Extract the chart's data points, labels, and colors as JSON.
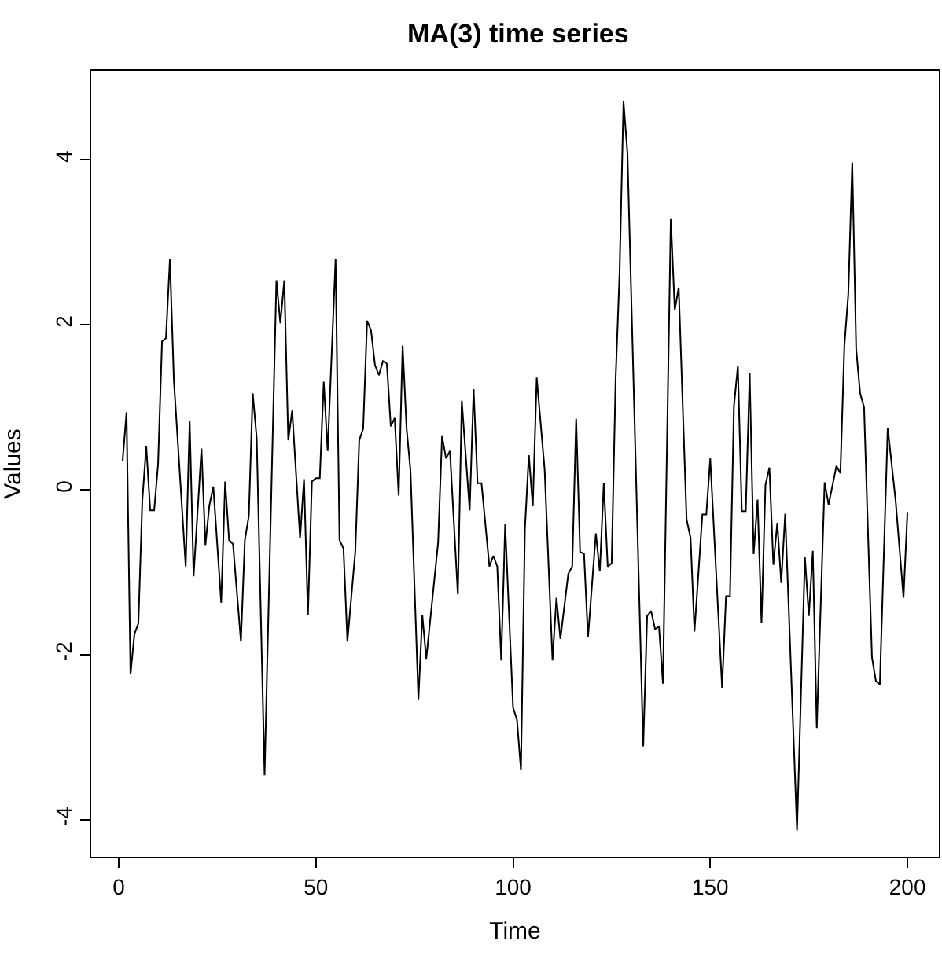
{
  "chart_data": {
    "type": "line",
    "title": "MA(3) time series",
    "xlabel": "Time",
    "ylabel": "Values",
    "xlim": [
      -6.96,
      207.96
    ],
    "ylim": [
      -4.45,
      5.08
    ],
    "xticks": [
      0,
      50,
      100,
      150,
      200
    ],
    "yticks": [
      -4,
      -2,
      0,
      2,
      4
    ],
    "marker": "none",
    "line_style": "solid",
    "series": [
      {
        "color": "#000000",
        "x": [
          1,
          2,
          3,
          4,
          5,
          6,
          7,
          8,
          9,
          10,
          11,
          12,
          13,
          14,
          17,
          18,
          19,
          21,
          22,
          23,
          24,
          26,
          27,
          28,
          29,
          31,
          32,
          33,
          34,
          35,
          37,
          40,
          41,
          42,
          43,
          44,
          46,
          47,
          48,
          49,
          50,
          51,
          52,
          53,
          55,
          56,
          57,
          58,
          60,
          61,
          62,
          63,
          64,
          65,
          66,
          67,
          68,
          69,
          70,
          71,
          72,
          73,
          74,
          76,
          77,
          78,
          81,
          82,
          83,
          84,
          86,
          87,
          89,
          90,
          91,
          92,
          94,
          95,
          96,
          97,
          98,
          100,
          101,
          102,
          103,
          104,
          105,
          106,
          108,
          110,
          111,
          112,
          114,
          115,
          116,
          117,
          118,
          119,
          121,
          122,
          123,
          124,
          125,
          126,
          127,
          128,
          129,
          133,
          134,
          135,
          136,
          137,
          138,
          140,
          141,
          142,
          144,
          145,
          146,
          148,
          149,
          150,
          153,
          154,
          155,
          156,
          157,
          158,
          159,
          160,
          161,
          162,
          163,
          164,
          165,
          166,
          167,
          168,
          169,
          172,
          174,
          175,
          176,
          177,
          179,
          180,
          182,
          183,
          184,
          185,
          186,
          187,
          188,
          189,
          191,
          192,
          193,
          195,
          197,
          199,
          200
        ],
        "values": [
          0.35,
          0.94,
          -2.24,
          -1.75,
          -1.62,
          -0.13,
          0.53,
          -0.25,
          -0.25,
          0.31,
          1.8,
          1.84,
          2.8,
          1.33,
          -0.93,
          0.84,
          -1.05,
          0.5,
          -0.67,
          -0.19,
          0.04,
          -1.37,
          0.1,
          -0.61,
          -0.66,
          -1.84,
          -0.61,
          -0.32,
          1.17,
          0.63,
          -3.46,
          2.54,
          2.02,
          2.54,
          0.6,
          0.96,
          -0.59,
          0.13,
          -1.52,
          0.1,
          0.14,
          0.14,
          1.31,
          0.47,
          2.8,
          -0.61,
          -0.71,
          -1.84,
          -0.75,
          0.6,
          0.74,
          2.05,
          1.93,
          1.51,
          1.39,
          1.56,
          1.53,
          0.77,
          0.87,
          -0.07,
          1.75,
          0.75,
          0.23,
          -2.54,
          -1.52,
          -2.05,
          -0.64,
          0.65,
          0.38,
          0.47,
          -1.27,
          1.08,
          -0.25,
          1.22,
          0.08,
          0.08,
          -0.93,
          -0.8,
          -0.93,
          -2.07,
          -0.42,
          -2.64,
          -2.79,
          -3.4,
          -0.48,
          0.42,
          -0.2,
          1.36,
          0.25,
          -2.07,
          -1.31,
          -1.81,
          -1.02,
          -0.93,
          0.86,
          -0.75,
          -0.78,
          -1.79,
          -0.53,
          -0.99,
          0.08,
          -0.93,
          -0.89,
          1.33,
          2.62,
          4.71,
          4.08,
          -3.11,
          -1.53,
          -1.47,
          -1.69,
          -1.66,
          -2.35,
          3.29,
          2.18,
          2.45,
          -0.36,
          -0.58,
          -1.72,
          -0.3,
          -0.3,
          0.38,
          -2.4,
          -1.29,
          -1.29,
          1.01,
          1.5,
          -0.26,
          -0.26,
          1.41,
          -0.78,
          -0.12,
          -1.62,
          0.06,
          0.27,
          -0.91,
          -0.4,
          -1.13,
          -0.29,
          -4.13,
          -0.82,
          -1.53,
          -0.74,
          -2.89,
          0.09,
          -0.18,
          0.29,
          0.2,
          1.74,
          2.37,
          3.97,
          1.71,
          1.17,
          1.0,
          -2.03,
          -2.32,
          -2.36,
          0.75,
          -0.13,
          -1.31,
          -0.27
        ]
      }
    ]
  }
}
